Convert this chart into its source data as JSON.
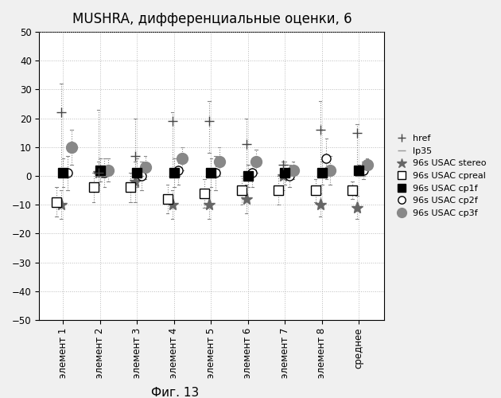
{
  "title": "MUSHRA, дифференциальные оценки, 6",
  "xlabel_bottom": "Фиг. 13",
  "ylim": [
    -50,
    50
  ],
  "yticks": [
    -50,
    -40,
    -30,
    -20,
    -10,
    0,
    10,
    20,
    30,
    40,
    50
  ],
  "categories": [
    "элемент 1",
    "элемент 2",
    "элемент 3",
    "элемент 4",
    "элемент 5",
    "элемент 6",
    "элемент 7",
    "элемент 8",
    "среднее"
  ],
  "offsets": {
    "href": -0.05,
    "lp35": 0.05,
    "96s USAC stereo": -0.05,
    "96s USAC cpreal": -0.18,
    "96s USAC cp1f": 0.0,
    "96s USAC cp2f": 0.12,
    "96s USAC cp3f": 0.22
  },
  "series": [
    {
      "name": "href",
      "values": [
        22,
        1,
        7,
        19,
        19,
        11,
        4,
        16,
        15
      ],
      "yerr_lo": [
        22,
        1,
        7,
        19,
        11,
        11,
        4,
        16,
        15
      ],
      "yerr_hi": [
        10,
        22,
        13,
        3,
        7,
        9,
        1,
        10,
        3
      ],
      "marker": "+",
      "color": "#444444",
      "edgecolor": "#444444",
      "markersize": 9,
      "zorder": 5
    },
    {
      "name": "lp35",
      "values": [
        0,
        0,
        0,
        0,
        0,
        0,
        0,
        0,
        0
      ],
      "yerr_lo": [
        0,
        0,
        0,
        0,
        0,
        0,
        0,
        0,
        0
      ],
      "yerr_hi": [
        0,
        0,
        0,
        0,
        0,
        0,
        0,
        0,
        0
      ],
      "marker": "_",
      "color": "#999999",
      "edgecolor": "#999999",
      "markersize": 8,
      "zorder": 4
    },
    {
      "name": "96s USAC stereo",
      "values": [
        -10,
        1,
        -2,
        -10,
        -10,
        -8,
        0,
        -10,
        -11
      ],
      "yerr_lo": [
        5,
        4,
        7,
        5,
        5,
        5,
        5,
        4,
        4
      ],
      "yerr_hi": [
        5,
        4,
        7,
        5,
        5,
        5,
        5,
        4,
        4
      ],
      "marker": "*",
      "color": "#666666",
      "edgecolor": "#666666",
      "markersize": 11,
      "zorder": 3
    },
    {
      "name": "96s USAC cpreal",
      "values": [
        -9,
        -4,
        -4,
        -8,
        -6,
        -5,
        -5,
        -5,
        -5
      ],
      "yerr_lo": [
        5,
        5,
        5,
        5,
        5,
        5,
        5,
        4,
        3
      ],
      "yerr_hi": [
        5,
        5,
        5,
        5,
        5,
        5,
        5,
        4,
        3
      ],
      "marker": "s",
      "color": "#ffffff",
      "edgecolor": "#000000",
      "markersize": 8,
      "zorder": 3
    },
    {
      "name": "96s USAC cp1f",
      "values": [
        1,
        2,
        1,
        1,
        1,
        0,
        1,
        1,
        2
      ],
      "yerr_lo": [
        5,
        4,
        5,
        5,
        5,
        4,
        4,
        4,
        2
      ],
      "yerr_hi": [
        5,
        4,
        5,
        5,
        5,
        4,
        4,
        4,
        2
      ],
      "marker": "s",
      "color": "#000000",
      "edgecolor": "#000000",
      "markersize": 9,
      "zorder": 4
    },
    {
      "name": "96s USAC cp2f",
      "values": [
        1,
        1,
        0,
        2,
        1,
        1,
        0,
        6,
        2
      ],
      "yerr_lo": [
        6,
        5,
        5,
        5,
        6,
        5,
        4,
        7,
        3
      ],
      "yerr_hi": [
        6,
        5,
        5,
        5,
        6,
        5,
        4,
        7,
        3
      ],
      "marker": "o",
      "color": "#ffffff",
      "edgecolor": "#000000",
      "markersize": 8,
      "zorder": 3
    },
    {
      "name": "96s USAC cp3f",
      "values": [
        10,
        2,
        3,
        6,
        5,
        5,
        2,
        2,
        4
      ],
      "yerr_lo": [
        6,
        4,
        4,
        4,
        5,
        4,
        3,
        5,
        2
      ],
      "yerr_hi": [
        6,
        4,
        4,
        4,
        5,
        4,
        3,
        5,
        2
      ],
      "marker": "o",
      "color": "#888888",
      "edgecolor": "#888888",
      "markersize": 10,
      "zorder": 3
    }
  ],
  "background_color": "#f0f0f0",
  "plot_bg_color": "#ffffff",
  "grid_color": "#bbbbbb",
  "title_fontsize": 12,
  "tick_fontsize": 8.5,
  "legend_fontsize": 8
}
